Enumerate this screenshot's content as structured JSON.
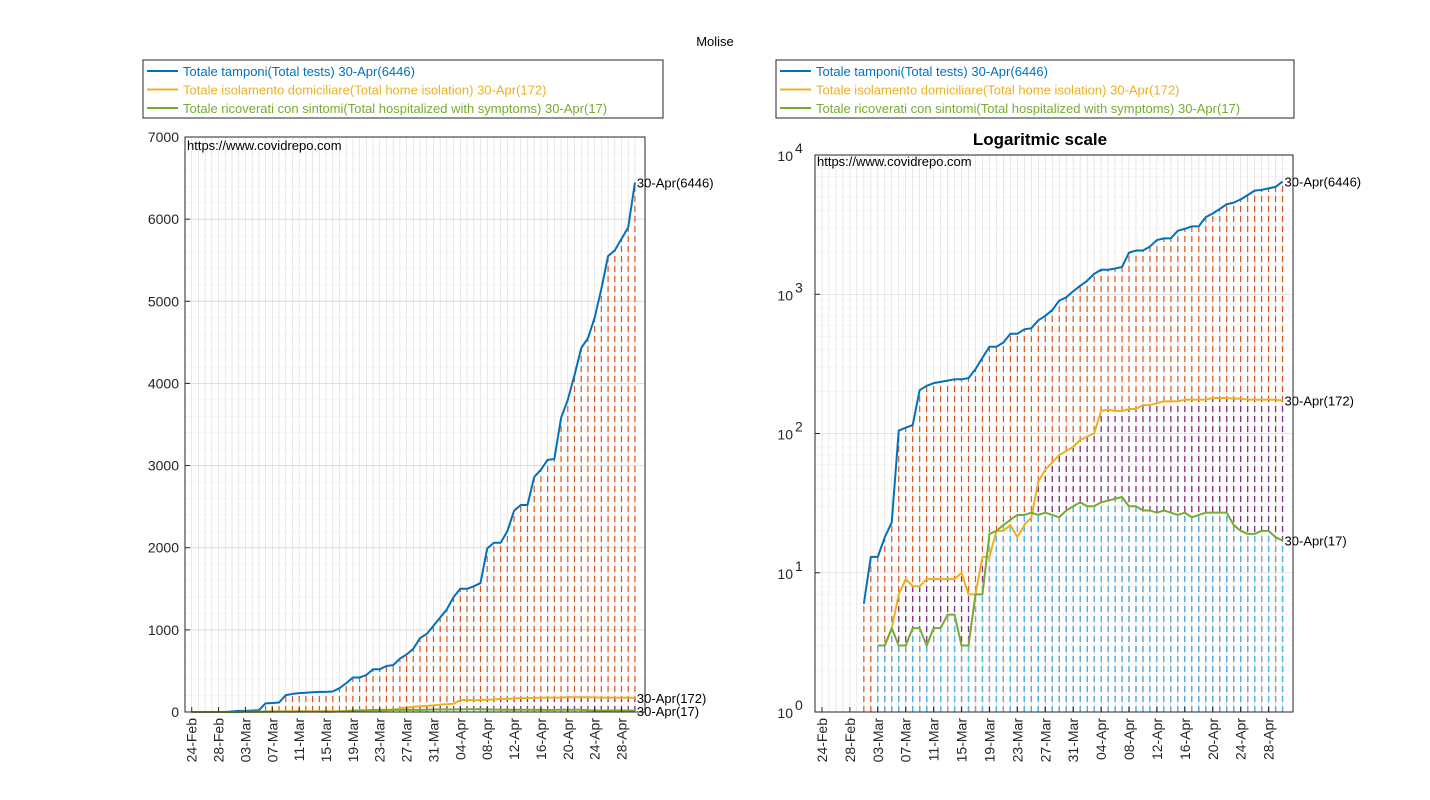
{
  "suptitle": "Molise",
  "watermark": "https://www.covidrepo.com",
  "colors": {
    "tests": "#0072BD",
    "isolation": "#EDB120",
    "hospitalized": "#77AC30",
    "stem_tests": "#D95319",
    "stem_isolation": "#7E2F8E",
    "stem_hospitalized": "#4DBEEE",
    "grid": "#d9d9d9",
    "axis": "#262626"
  },
  "legend_entries": [
    "Totale tamponi(Total tests) 30-Apr(6446)",
    "Totale isolamento domiciliare(Total home isolation) 30-Apr(172)",
    "Totale ricoverati con sintomi(Total hospitalized with symptoms) 30-Apr(17)"
  ],
  "chart_data": [
    {
      "type": "line",
      "title": "",
      "scale": "linear",
      "ylim": [
        0,
        7000
      ],
      "yticks": [
        "0",
        "1000",
        "2000",
        "3000",
        "4000",
        "5000",
        "6000",
        "7000"
      ],
      "grid": true,
      "legend_position": "top",
      "x_tick_labels": [
        "24-Feb",
        "28-Feb",
        "03-Mar",
        "07-Mar",
        "11-Mar",
        "15-Mar",
        "19-Mar",
        "23-Mar",
        "27-Mar",
        "31-Mar",
        "04-Apr",
        "08-Apr",
        "12-Apr",
        "16-Apr",
        "20-Apr",
        "24-Apr",
        "28-Apr"
      ],
      "end_labels": [
        "30-Apr(6446)",
        "30-Apr(172)",
        "30-Apr(17)"
      ]
    },
    {
      "type": "line",
      "title": "Logaritmic scale",
      "scale": "log",
      "ylim": [
        1,
        10000
      ],
      "ytick_bases": [
        "10",
        "10",
        "10",
        "10",
        "10"
      ],
      "ytick_exponents": [
        "0",
        "1",
        "2",
        "3",
        "4"
      ],
      "grid": true,
      "legend_position": "top",
      "x_tick_labels": [
        "24-Feb",
        "28-Feb",
        "03-Mar",
        "07-Mar",
        "11-Mar",
        "15-Mar",
        "19-Mar",
        "23-Mar",
        "27-Mar",
        "31-Mar",
        "04-Apr",
        "08-Apr",
        "12-Apr",
        "16-Apr",
        "20-Apr",
        "24-Apr",
        "28-Apr"
      ],
      "end_labels": [
        "30-Apr(6446)",
        "30-Apr(172)",
        "30-Apr(17)"
      ]
    }
  ],
  "series_data": {
    "dates": [
      "24-Feb",
      "25-Feb",
      "26-Feb",
      "27-Feb",
      "28-Feb",
      "29-Feb",
      "01-Mar",
      "02-Mar",
      "03-Mar",
      "04-Mar",
      "05-Mar",
      "06-Mar",
      "07-Mar",
      "08-Mar",
      "09-Mar",
      "10-Mar",
      "11-Mar",
      "12-Mar",
      "13-Mar",
      "14-Mar",
      "15-Mar",
      "16-Mar",
      "17-Mar",
      "18-Mar",
      "19-Mar",
      "20-Mar",
      "21-Mar",
      "22-Mar",
      "23-Mar",
      "24-Mar",
      "25-Mar",
      "26-Mar",
      "27-Mar",
      "28-Mar",
      "29-Mar",
      "30-Mar",
      "31-Mar",
      "01-Apr",
      "02-Apr",
      "03-Apr",
      "04-Apr",
      "05-Apr",
      "06-Apr",
      "07-Apr",
      "08-Apr",
      "09-Apr",
      "10-Apr",
      "11-Apr",
      "12-Apr",
      "13-Apr",
      "14-Apr",
      "15-Apr",
      "16-Apr",
      "17-Apr",
      "18-Apr",
      "19-Apr",
      "20-Apr",
      "21-Apr",
      "22-Apr",
      "23-Apr",
      "24-Apr",
      "25-Apr",
      "26-Apr",
      "27-Apr",
      "28-Apr",
      "29-Apr",
      "30-Apr"
    ],
    "series": [
      {
        "name": "Totale tamponi(Total tests)",
        "values": [
          0,
          0,
          0,
          0,
          0,
          0,
          6,
          13,
          13,
          18,
          23,
          105,
          110,
          115,
          205,
          220,
          230,
          235,
          240,
          245,
          245,
          250,
          290,
          350,
          420,
          420,
          450,
          520,
          520,
          560,
          570,
          650,
          700,
          770,
          900,
          950,
          1050,
          1150,
          1250,
          1400,
          1500,
          1500,
          1530,
          1570,
          1990,
          2060,
          2060,
          2200,
          2450,
          2520,
          2520,
          2860,
          2950,
          3070,
          3080,
          3580,
          3800,
          4100,
          4430,
          4550,
          4800,
          5150,
          5550,
          5620,
          5760,
          5900,
          6446
        ]
      },
      {
        "name": "Totale isolamento domiciliare(Total home isolation)",
        "values": [
          0,
          0,
          0,
          0,
          0,
          0,
          0,
          0,
          3,
          3,
          4,
          7,
          9,
          8,
          8,
          9,
          9,
          9,
          9,
          9,
          10,
          7,
          7,
          13,
          13,
          20,
          20,
          22,
          18,
          22,
          25,
          45,
          55,
          62,
          70,
          75,
          80,
          90,
          95,
          100,
          145,
          148,
          145,
          145,
          150,
          150,
          160,
          160,
          165,
          170,
          170,
          170,
          175,
          175,
          175,
          175,
          180,
          180,
          180,
          178,
          178,
          175,
          175,
          175,
          175,
          175,
          172
        ]
      },
      {
        "name": "Totale ricoverati con sintomi(Total hospitalized with symptoms)",
        "values": [
          0,
          0,
          0,
          0,
          0,
          0,
          0,
          0,
          3,
          3,
          4,
          3,
          3,
          4,
          4,
          3,
          4,
          4,
          5,
          5,
          3,
          3,
          7,
          7,
          19,
          20,
          22,
          24,
          26,
          26,
          27,
          26,
          27,
          26,
          25,
          28,
          30,
          32,
          30,
          30,
          32,
          33,
          34,
          35,
          30,
          30,
          28,
          28,
          27,
          28,
          27,
          26,
          27,
          25,
          26,
          27,
          27,
          27,
          27,
          22,
          20,
          19,
          19,
          20,
          20,
          18,
          17
        ]
      }
    ]
  }
}
